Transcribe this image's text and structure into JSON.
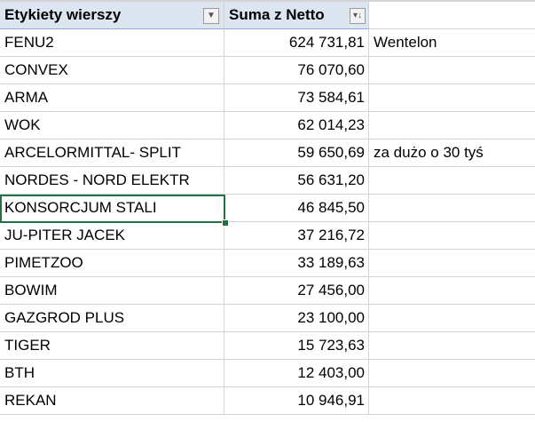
{
  "pivot": {
    "row_labels_header": "Etykiety wierszy",
    "value_header": "Suma z Netto",
    "row_filter_icon": "filter-dropdown-icon",
    "sort_filter_icon": "sort-descending-dropdown-icon",
    "selected_row_index": 6,
    "rows": [
      {
        "label": "FENU2",
        "value": "624 731,81",
        "note": "Wentelon"
      },
      {
        "label": "CONVEX",
        "value": "76 070,60",
        "note": ""
      },
      {
        "label": "ARMA",
        "value": "73 584,61",
        "note": ""
      },
      {
        "label": "WOK",
        "value": "62 014,23",
        "note": ""
      },
      {
        "label": "ARCELORMITTAL- SPLIT",
        "value": "59 650,69",
        "note": "za dużo o 30 tyś"
      },
      {
        "label": "NORDES - NORD ELEKTR",
        "value": "56 631,20",
        "note": ""
      },
      {
        "label": "KONSORCJUM STALI",
        "value": "46 845,50",
        "note": ""
      },
      {
        "label": "JU-PITER JACEK",
        "value": "37 216,72",
        "note": ""
      },
      {
        "label": "PIMETZOO",
        "value": "33 189,63",
        "note": ""
      },
      {
        "label": "BOWIM",
        "value": "27 456,00",
        "note": ""
      },
      {
        "label": "GAZGROD PLUS",
        "value": "23 100,00",
        "note": ""
      },
      {
        "label": "TIGER",
        "value": "15 723,63",
        "note": ""
      },
      {
        "label": "BTH",
        "value": "12 403,00",
        "note": ""
      },
      {
        "label": "REKAN",
        "value": "10 946,91",
        "note": ""
      }
    ]
  },
  "colors": {
    "header_fill": "#dce6f1",
    "selection_border": "#217346",
    "gridline": "#d4d4d4"
  }
}
